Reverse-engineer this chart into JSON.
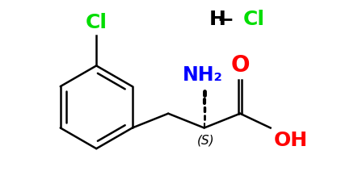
{
  "figsize": [
    4.39,
    2.33
  ],
  "dpi": 100,
  "background_color": "#ffffff",
  "bond_color": "#000000",
  "bond_lw": 1.8,
  "Cl_label": "Cl",
  "Cl_color": "#00dd00",
  "Cl_fontsize": 18,
  "NH2_label": "NH₂",
  "NH2_color": "#0000ff",
  "NH2_fontsize": 17,
  "O_label": "O",
  "O_color": "#ff0000",
  "O_fontsize": 20,
  "OH_label": "OH",
  "OH_color": "#ff0000",
  "OH_fontsize": 18,
  "S_label": "(S)",
  "S_color": "#000000",
  "S_fontsize": 11,
  "HCl_H": "H",
  "HCl_H_color": "#000000",
  "HCl_Cl": "Cl",
  "HCl_Cl_color": "#00dd00",
  "HCl_fontsize": 18,
  "HCl_dash_color": "#000000"
}
